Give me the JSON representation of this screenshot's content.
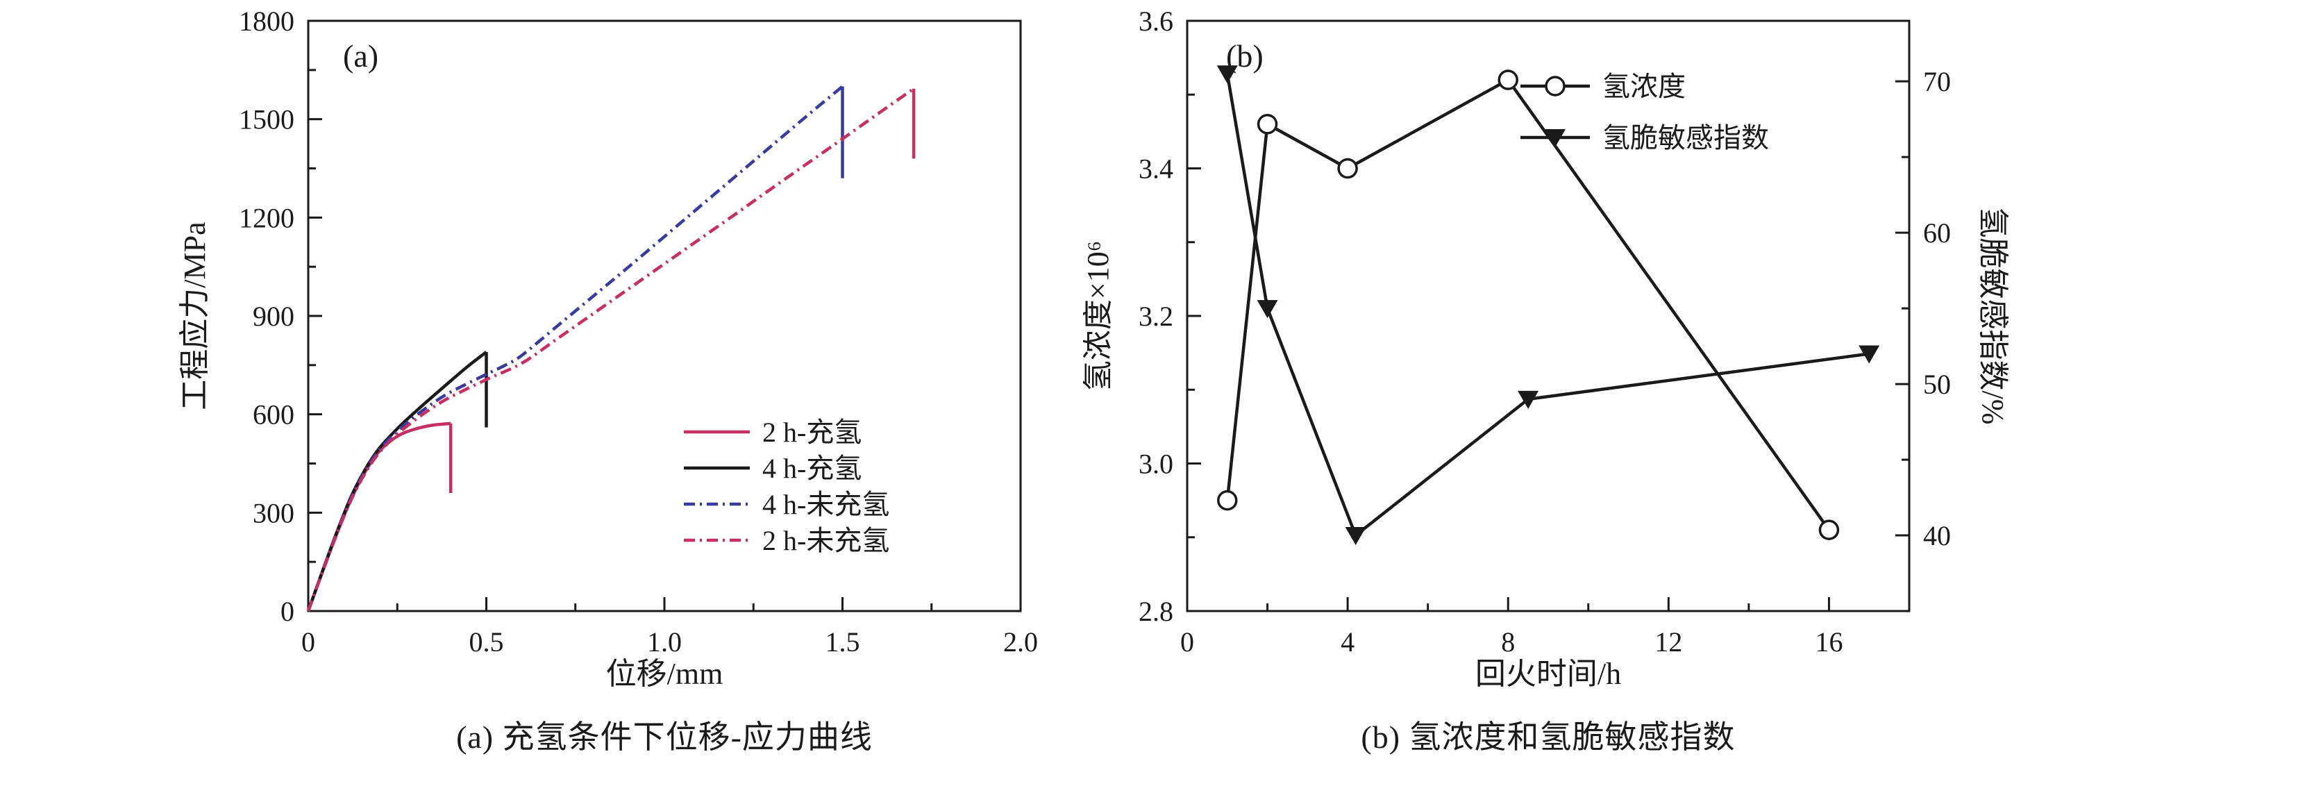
{
  "figure": {
    "background": "#ffffff",
    "frame_color": "#1a1a1a",
    "colors": {
      "crimson": "#c72f63",
      "black": "#1a1a1a",
      "blue": "#3b3b9e"
    }
  },
  "chart_data": [
    {
      "type": "line",
      "panel_label": "(a)",
      "caption": "(a) 充氢条件下位移-应力曲线",
      "xlabel": "位移/mm",
      "ylabel": "工程应力/MPa",
      "xlim": [
        0,
        2.0
      ],
      "ylim": [
        0,
        1800
      ],
      "xticks": [
        0,
        0.5,
        1.0,
        1.5,
        2.0
      ],
      "xtick_labels": [
        "0",
        "0.5",
        "1.0",
        "1.5",
        "2.0"
      ],
      "yticks": [
        0,
        300,
        600,
        900,
        1200,
        1500,
        1800
      ],
      "ytick_labels": [
        "0",
        "300",
        "600",
        "900",
        "1200",
        "1500",
        "1800"
      ],
      "x_minor_step": 0.25,
      "y_minor_step": 150,
      "grid": false,
      "legend_position": "inside-right-middle",
      "series": [
        {
          "name": "2 h-充氢",
          "color": "#c72f63",
          "dash": "solid",
          "smooth": true,
          "drop_to": 360,
          "points": [
            [
              0,
              0
            ],
            [
              0.04,
              120
            ],
            [
              0.08,
              235
            ],
            [
              0.12,
              340
            ],
            [
              0.16,
              425
            ],
            [
              0.2,
              488
            ],
            [
              0.25,
              533
            ],
            [
              0.3,
              555
            ],
            [
              0.35,
              567
            ],
            [
              0.4,
              572
            ]
          ]
        },
        {
          "name": "4 h-充氢",
          "color": "#1a1a1a",
          "dash": "solid",
          "smooth": true,
          "drop_to": 560,
          "points": [
            [
              0,
              0
            ],
            [
              0.04,
              122
            ],
            [
              0.08,
              240
            ],
            [
              0.12,
              348
            ],
            [
              0.16,
              432
            ],
            [
              0.2,
              497
            ],
            [
              0.25,
              556
            ],
            [
              0.3,
              607
            ],
            [
              0.35,
              655
            ],
            [
              0.4,
              702
            ],
            [
              0.45,
              748
            ],
            [
              0.5,
              790
            ]
          ]
        },
        {
          "name": "4 h-未充氢",
          "color": "#3b3b9e",
          "dash": "dashdot",
          "smooth": true,
          "drop_to": 1320,
          "points": [
            [
              0,
              0
            ],
            [
              0.04,
              121
            ],
            [
              0.08,
              238
            ],
            [
              0.12,
              344
            ],
            [
              0.16,
              428
            ],
            [
              0.2,
              492
            ],
            [
              0.25,
              548
            ],
            [
              0.3,
              594
            ],
            [
              0.35,
              634
            ],
            [
              0.4,
              668
            ],
            [
              0.5,
              722
            ],
            [
              0.55,
              748
            ],
            [
              0.6,
              780
            ],
            [
              0.7,
              870
            ],
            [
              0.8,
              960
            ],
            [
              0.9,
              1050
            ],
            [
              1.0,
              1142
            ],
            [
              1.1,
              1234
            ],
            [
              1.2,
              1326
            ],
            [
              1.3,
              1418
            ],
            [
              1.4,
              1510
            ],
            [
              1.5,
              1600
            ]
          ]
        },
        {
          "name": "2 h-未充氢",
          "color": "#c72f63",
          "dash": "dashdot",
          "smooth": true,
          "drop_to": 1380,
          "points": [
            [
              0,
              0
            ],
            [
              0.04,
              119
            ],
            [
              0.08,
              234
            ],
            [
              0.12,
              338
            ],
            [
              0.16,
              421
            ],
            [
              0.2,
              484
            ],
            [
              0.25,
              539
            ],
            [
              0.3,
              583
            ],
            [
              0.35,
              621
            ],
            [
              0.4,
              653
            ],
            [
              0.5,
              706
            ],
            [
              0.6,
              756
            ],
            [
              0.7,
              831
            ],
            [
              0.8,
              907
            ],
            [
              0.9,
              983
            ],
            [
              1.0,
              1059
            ],
            [
              1.1,
              1135
            ],
            [
              1.2,
              1211
            ],
            [
              1.3,
              1288
            ],
            [
              1.4,
              1364
            ],
            [
              1.5,
              1440
            ],
            [
              1.6,
              1517
            ],
            [
              1.7,
              1593
            ]
          ]
        }
      ]
    },
    {
      "type": "line",
      "panel_label": "(b)",
      "caption": "(b) 氢浓度和氢脆敏感指数",
      "xlabel": "回火时间/h",
      "ylabel": "氢浓度×10⁶",
      "ylabel_right": "氢脆敏感指数/%",
      "xlim": [
        0,
        18
      ],
      "ylim": [
        2.8,
        3.6
      ],
      "ylim_right": [
        35,
        74
      ],
      "xticks": [
        0,
        4,
        8,
        12,
        16
      ],
      "xtick_labels": [
        "0",
        "4",
        "8",
        "12",
        "16"
      ],
      "yticks": [
        2.8,
        3.0,
        3.2,
        3.4,
        3.6
      ],
      "ytick_labels": [
        "2.8",
        "3.0",
        "3.2",
        "3.4",
        "3.6"
      ],
      "yticks_right": [
        40,
        50,
        60,
        70
      ],
      "ytick_right_labels": [
        "40",
        "50",
        "60",
        "70"
      ],
      "x_minor_step": 2,
      "y_minor_step": 0.1,
      "y_minor_right_step": 5,
      "grid": false,
      "legend_position": "inside-top-right",
      "series": [
        {
          "name": "氢浓度",
          "axis": "left",
          "color": "#1a1a1a",
          "dash": "solid",
          "smooth": false,
          "marker": "circle-open",
          "points": [
            [
              1,
              2.95
            ],
            [
              2,
              3.46
            ],
            [
              4,
              3.4
            ],
            [
              8,
              3.52
            ],
            [
              16,
              2.91
            ]
          ]
        },
        {
          "name": "氢脆敏感指数",
          "axis": "right",
          "color": "#1a1a1a",
          "dash": "solid",
          "smooth": false,
          "marker": "triangle-down",
          "points": [
            [
              1,
              70.5
            ],
            [
              2,
              55
            ],
            [
              4.2,
              40
            ],
            [
              8.5,
              49
            ],
            [
              17,
              52
            ]
          ]
        }
      ]
    }
  ]
}
